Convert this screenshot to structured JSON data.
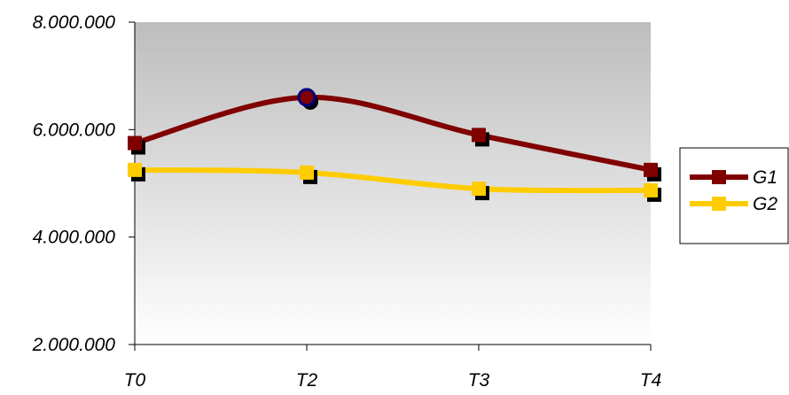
{
  "chart_data": {
    "type": "line",
    "title": "",
    "xlabel": "",
    "ylabel": "",
    "categories": [
      "T0",
      "T2",
      "T3",
      "T4"
    ],
    "y_ticks": [
      "2.000.000",
      "4.000.000",
      "6.000.000",
      "8.000.000"
    ],
    "ylim": [
      2000000,
      8000000
    ],
    "y_tick_values": [
      2000000,
      4000000,
      6000000,
      8000000
    ],
    "grid": false,
    "legend_position": "right",
    "smooth": true,
    "series": [
      {
        "name": "G1",
        "color": "#800000",
        "values": [
          5750000,
          6600000,
          5900000,
          5250000
        ]
      },
      {
        "name": "G2",
        "color": "#FFCC00",
        "values": [
          5250000,
          5200000,
          4900000,
          4870000
        ]
      }
    ],
    "highlight": {
      "series": "G1",
      "category": "T2",
      "color": "#000080"
    }
  }
}
